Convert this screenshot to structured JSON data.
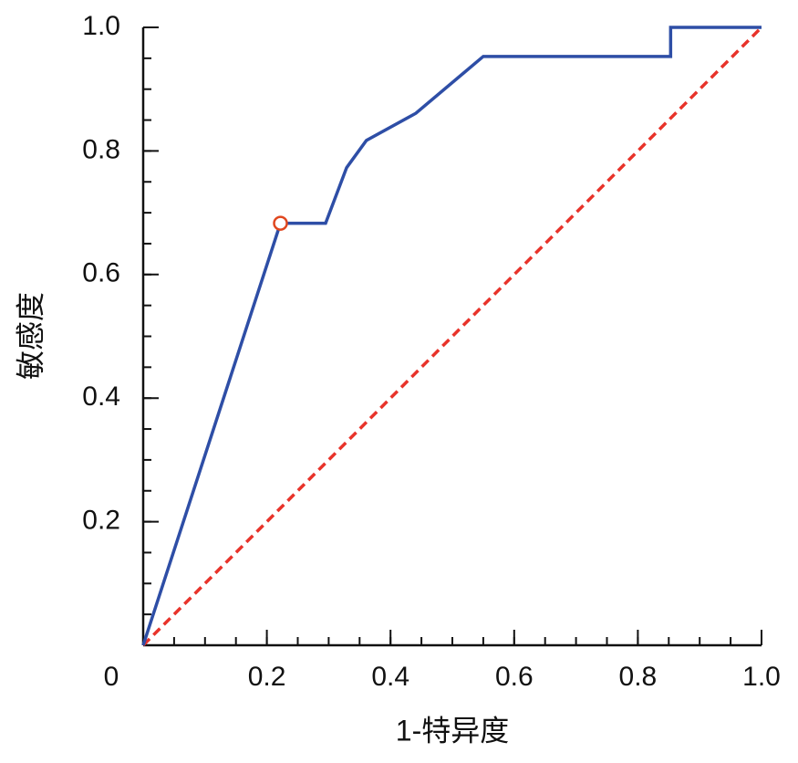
{
  "chart_data": {
    "type": "line",
    "x_label": "1-特异度",
    "y_label": "敏感度",
    "xlim": [
      0,
      1
    ],
    "ylim": [
      0,
      1
    ],
    "xticks": [
      0,
      0.2,
      0.4,
      0.6,
      0.8,
      {
        "value": 1,
        "label": "1.0"
      }
    ],
    "yticks": [
      0.2,
      0.4,
      0.6,
      0.8,
      {
        "value": 1,
        "label": "1.0"
      }
    ],
    "grid": false,
    "series": [
      {
        "color": "#2e4ea6",
        "linestyle": "solid",
        "x": [
          0,
          0.222,
          0.295,
          0.329,
          0.361,
          0.441,
          0.55,
          0.853,
          0.853,
          1
        ],
        "values": [
          0,
          0.683,
          0.683,
          0.773,
          0.817,
          0.861,
          0.953,
          0.953,
          1,
          1
        ]
      },
      {
        "color": "#e8332a",
        "linestyle": "dashed",
        "x": [
          0,
          1
        ],
        "values": [
          0,
          1
        ]
      }
    ],
    "highlight_point": {
      "x": 0.222,
      "y": 0.683,
      "color": "#e0471f"
    }
  }
}
